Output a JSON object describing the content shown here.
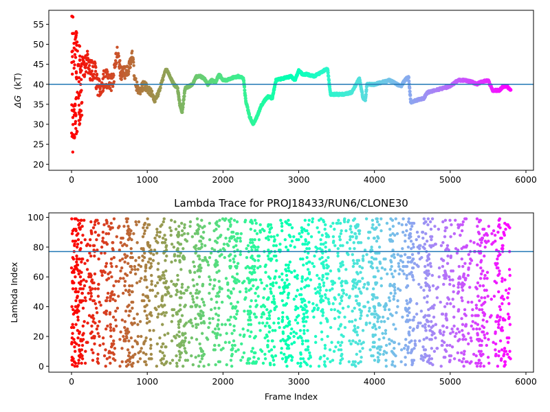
{
  "chart_data": [
    {
      "type": "scatter",
      "title": "",
      "xlabel": "",
      "ylabel": "ΔG (kT)",
      "ylabel_symbol": "ΔG",
      "ylabel_unit": "(kT)",
      "xlim": [
        -300,
        6100
      ],
      "ylim": [
        18.5,
        58.5
      ],
      "xticks": [
        0,
        1000,
        2000,
        3000,
        4000,
        5000,
        6000
      ],
      "yticks": [
        20,
        25,
        30,
        35,
        40,
        45,
        50,
        55
      ],
      "reference_line": 40,
      "reference_color": "#1f77b4",
      "colormap": "rainbow",
      "grid": false,
      "trace_keypoints": [
        [
          150,
          44
        ],
        [
          200,
          46
        ],
        [
          250,
          43
        ],
        [
          300,
          44
        ],
        [
          350,
          39
        ],
        [
          400,
          40
        ],
        [
          450,
          42
        ],
        [
          500,
          40
        ],
        [
          550,
          41
        ],
        [
          600,
          48
        ],
        [
          650,
          43
        ],
        [
          700,
          43
        ],
        [
          750,
          44
        ],
        [
          800,
          47
        ],
        [
          850,
          40
        ],
        [
          900,
          38
        ],
        [
          950,
          40
        ],
        [
          1000,
          39
        ],
        [
          1050,
          38
        ],
        [
          1100,
          36
        ],
        [
          1150,
          38
        ],
        [
          1200,
          41
        ],
        [
          1250,
          44
        ],
        [
          1300,
          42
        ],
        [
          1350,
          40
        ],
        [
          1400,
          39
        ],
        [
          1430,
          35
        ],
        [
          1460,
          33
        ],
        [
          1500,
          39
        ],
        [
          1600,
          40
        ],
        [
          1650,
          42
        ],
        [
          1700,
          42
        ],
        [
          1750,
          41.5
        ],
        [
          1800,
          40
        ],
        [
          1850,
          41
        ],
        [
          1900,
          40.5
        ],
        [
          1950,
          42.5
        ],
        [
          2000,
          41
        ],
        [
          2050,
          41
        ],
        [
          2100,
          41.5
        ],
        [
          2200,
          42
        ],
        [
          2270,
          41.5
        ],
        [
          2300,
          36
        ],
        [
          2350,
          32
        ],
        [
          2400,
          30
        ],
        [
          2450,
          32
        ],
        [
          2500,
          34.5
        ],
        [
          2550,
          36
        ],
        [
          2600,
          37
        ],
        [
          2650,
          36.5
        ],
        [
          2700,
          41
        ],
        [
          2800,
          41.5
        ],
        [
          2900,
          42
        ],
        [
          2950,
          41
        ],
        [
          3000,
          43.5
        ],
        [
          3050,
          42.5
        ],
        [
          3100,
          42.5
        ],
        [
          3200,
          42
        ],
        [
          3300,
          43
        ],
        [
          3380,
          44
        ],
        [
          3420,
          37.5
        ],
        [
          3600,
          37.5
        ],
        [
          3700,
          38
        ],
        [
          3800,
          41.5
        ],
        [
          3850,
          36.5
        ],
        [
          3880,
          36
        ],
        [
          3900,
          40
        ],
        [
          4000,
          40
        ],
        [
          4100,
          40.5
        ],
        [
          4200,
          41
        ],
        [
          4300,
          40
        ],
        [
          4350,
          39.5
        ],
        [
          4400,
          41
        ],
        [
          4450,
          42
        ],
        [
          4480,
          35.5
        ],
        [
          4550,
          36
        ],
        [
          4650,
          36.5
        ],
        [
          4700,
          38
        ],
        [
          4800,
          38.5
        ],
        [
          4900,
          39
        ],
        [
          5000,
          39.5
        ],
        [
          5100,
          41
        ],
        [
          5200,
          41
        ],
        [
          5300,
          40.5
        ],
        [
          5350,
          40
        ],
        [
          5400,
          40.5
        ],
        [
          5500,
          41
        ],
        [
          5560,
          38.5
        ],
        [
          5650,
          38.5
        ],
        [
          5700,
          39.5
        ],
        [
          5750,
          39.5
        ],
        [
          5800,
          38.5
        ]
      ],
      "early_scatter_x_range": [
        0,
        150
      ],
      "early_scatter_y_range": [
        20,
        57
      ]
    },
    {
      "type": "scatter",
      "title": "Lambda Trace for PROJ18433/RUN6/CLONE30",
      "xlabel": "Frame Index",
      "ylabel": "Lambda Index",
      "xlim": [
        -300,
        6100
      ],
      "ylim": [
        -4,
        103
      ],
      "xticks": [
        0,
        1000,
        2000,
        3000,
        4000,
        5000,
        6000
      ],
      "yticks": [
        0,
        20,
        40,
        60,
        80,
        100
      ],
      "reference_line": 77,
      "reference_color": "#1f77b4",
      "colormap": "rainbow",
      "grid": false,
      "frame_range": [
        0,
        5800
      ],
      "lambda_range": [
        0,
        99
      ]
    }
  ]
}
